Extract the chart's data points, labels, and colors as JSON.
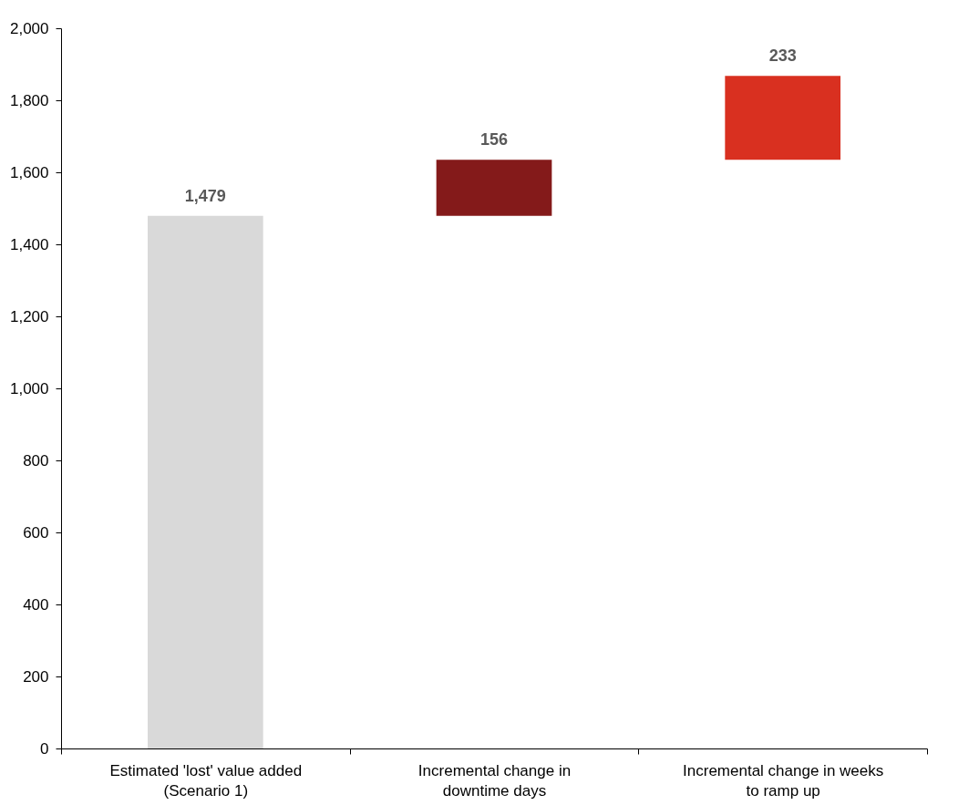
{
  "chart_data": {
    "type": "bar",
    "categories": [
      "Estimated 'lost' value added (Scenario 1)",
      "Incremental change in downtime days",
      "Incremental change in weeks to ramp up"
    ],
    "values": [
      1479,
      156,
      233
    ],
    "base": [
      0,
      1479,
      1635
    ],
    "colors": [
      "#d9d9d9",
      "#841a1a",
      "#d93020"
    ],
    "value_labels": [
      "1,479",
      "156",
      "233"
    ],
    "ylim": [
      0,
      2000
    ],
    "yticks": [
      0,
      200,
      400,
      600,
      800,
      {
        "value": 1000,
        "label": "1,000"
      },
      {
        "value": 1200,
        "label": "1,200"
      },
      {
        "value": 1400,
        "label": "1,400"
      },
      {
        "value": 1600,
        "label": "1,600"
      },
      {
        "value": 1800,
        "label": "1,800"
      },
      {
        "value": 2000,
        "label": "2,000"
      }
    ],
    "grid": false
  }
}
